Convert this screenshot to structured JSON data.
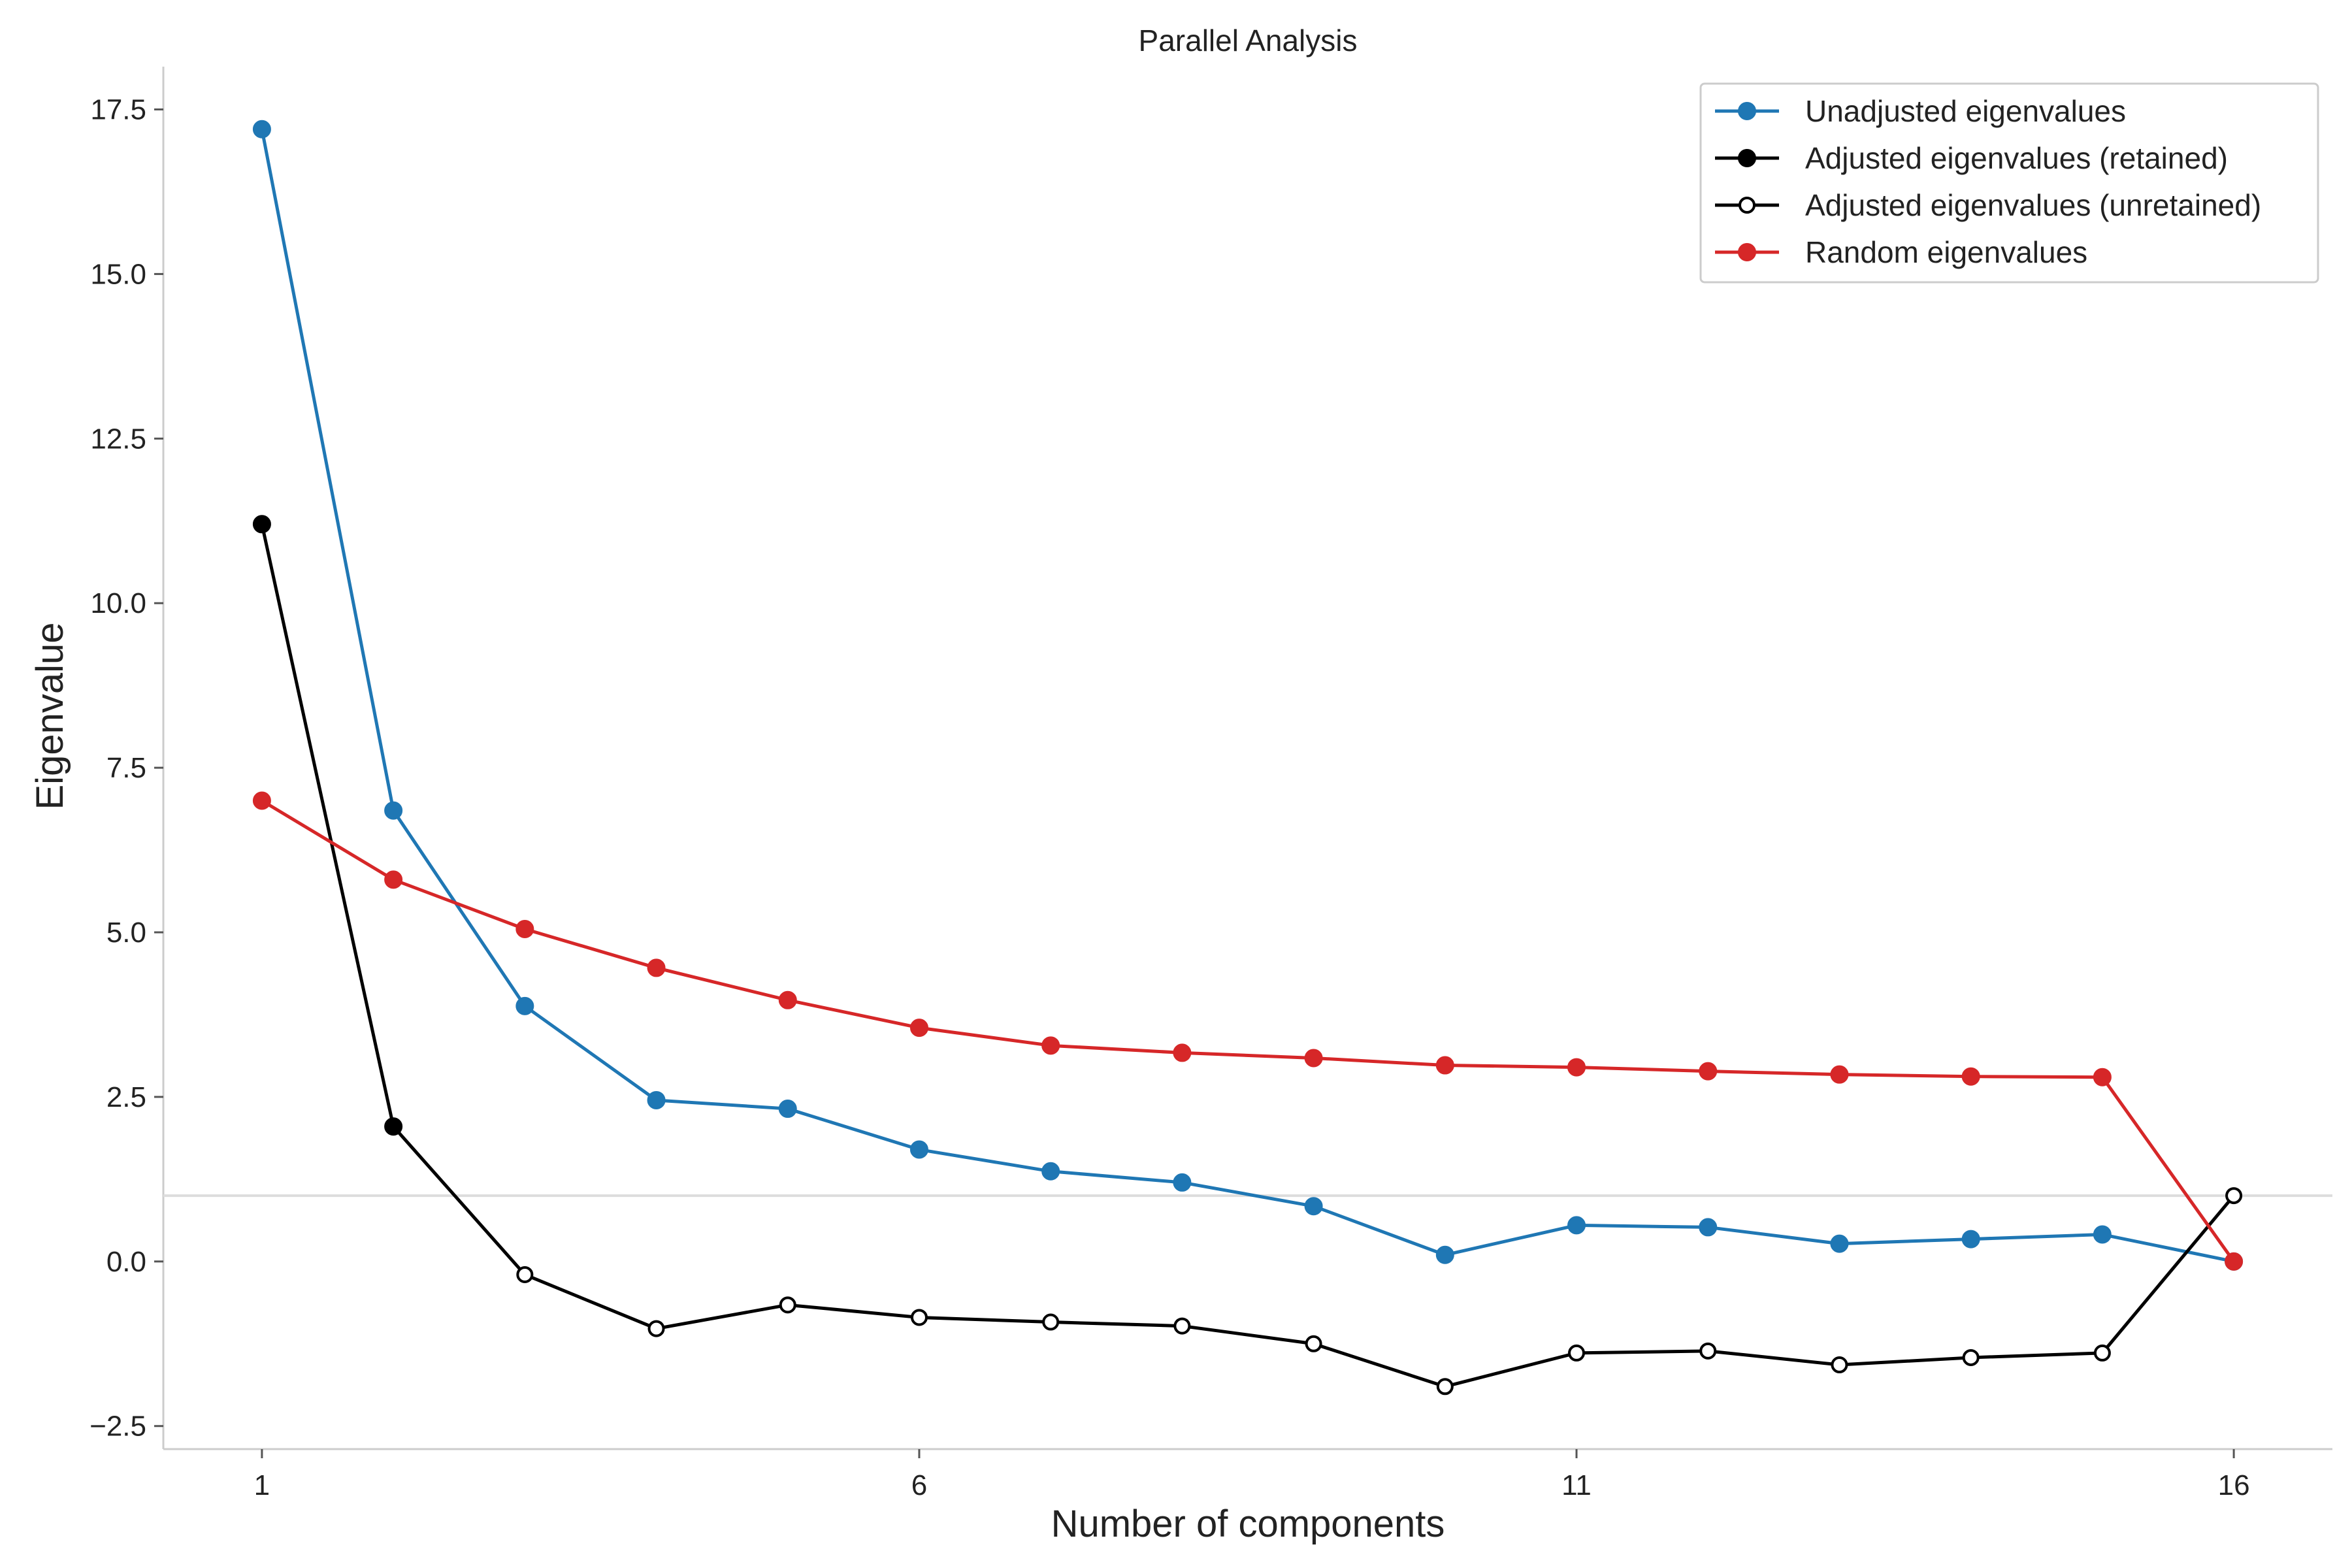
{
  "chart_data": {
    "type": "line",
    "title": "Parallel Analysis",
    "xlabel": "Number of components",
    "ylabel": "Eigenvalue",
    "xlim": [
      0.25,
      16.75
    ],
    "ylim": [
      -2.85,
      18.15
    ],
    "xticks": [
      1,
      6,
      11,
      16
    ],
    "xtick_labels": [
      "1",
      "6",
      "11",
      "16"
    ],
    "yticks": [
      -2.5,
      0.0,
      2.5,
      5.0,
      7.5,
      10.0,
      12.5,
      15.0,
      17.5
    ],
    "ytick_labels": [
      "−2.5",
      "0.0",
      "2.5",
      "5.0",
      "7.5",
      "10.0",
      "12.5",
      "15.0",
      "17.5"
    ],
    "grid": false,
    "legend_position": "top-right",
    "reference_line": {
      "y": 1.0,
      "color": "#dddddd"
    },
    "x": [
      1,
      2,
      3,
      4,
      5,
      6,
      7,
      8,
      9,
      10,
      11,
      12,
      13,
      14,
      15,
      16
    ],
    "series": [
      {
        "name": "Unadjusted eigenvalues",
        "color": "#1f77b4",
        "marker": "filled",
        "x": [
          1,
          2,
          3,
          4,
          5,
          6,
          7,
          8,
          9,
          10,
          11,
          12,
          13,
          14,
          15,
          16
        ],
        "values": [
          17.2,
          6.85,
          3.88,
          2.45,
          2.32,
          1.7,
          1.37,
          1.2,
          0.84,
          0.1,
          0.55,
          0.52,
          0.27,
          0.34,
          0.41,
          0.0
        ]
      },
      {
        "name": "Adjusted eigenvalues (retained)",
        "color": "#000000",
        "marker": "filled",
        "x": [
          1,
          2
        ],
        "values": [
          11.2,
          2.05
        ]
      },
      {
        "name": "Adjusted eigenvalues (unretained)",
        "color": "#000000",
        "marker": "hollow",
        "x": [
          2,
          3,
          4,
          5,
          6,
          7,
          8,
          9,
          10,
          11,
          12,
          13,
          14,
          15,
          16
        ],
        "values": [
          2.05,
          -0.2,
          -1.02,
          -0.66,
          -0.85,
          -0.92,
          -0.98,
          -1.25,
          -1.9,
          -1.39,
          -1.36,
          -1.57,
          -1.46,
          -1.39,
          1.0
        ],
        "marker_from_index": 1
      },
      {
        "name": "Random eigenvalues",
        "color": "#d62728",
        "marker": "filled",
        "x": [
          1,
          2,
          3,
          4,
          5,
          6,
          7,
          8,
          9,
          10,
          11,
          12,
          13,
          14,
          15,
          16
        ],
        "values": [
          7.0,
          5.8,
          5.05,
          4.46,
          3.97,
          3.55,
          3.28,
          3.17,
          3.09,
          2.98,
          2.95,
          2.89,
          2.84,
          2.81,
          2.8,
          0.0
        ]
      }
    ]
  }
}
